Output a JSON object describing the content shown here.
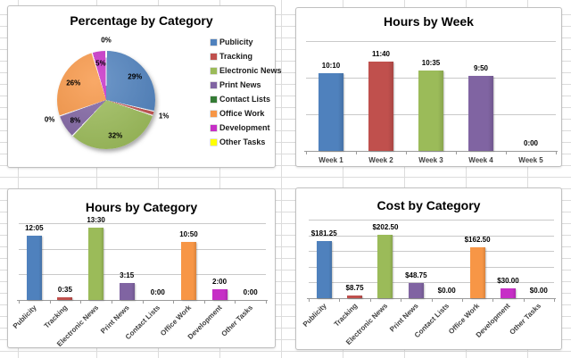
{
  "sheet": {
    "grid_color": "#dcdcdc"
  },
  "palette": {
    "publicity": "#4F81BD",
    "tracking": "#C0504D",
    "electronic_news": "#9BBB59",
    "print_news": "#8064A2",
    "contact_lists": "#347B35",
    "office_work": "#F79646",
    "development": "#C62FC6",
    "other_tasks": "#FFFF00"
  },
  "chart_data": [
    {
      "id": "percentage-by-category",
      "type": "pie",
      "title": "Percentage by Category",
      "legend_position": "right",
      "categories": [
        "Publicity",
        "Tracking",
        "Electronic News",
        "Print News",
        "Contact Lists",
        "Office Work",
        "Development",
        "Other Tasks"
      ],
      "values_percent": [
        28.6,
        1.4,
        31.9,
        7.7,
        0,
        25.6,
        4.7,
        0
      ],
      "slice_labels": [
        "29%",
        "1%",
        "32%",
        "8%",
        "0%",
        "26%",
        "5%",
        "0%"
      ],
      "colors": [
        "#4F81BD",
        "#C0504D",
        "#9BBB59",
        "#8064A2",
        "#347B35",
        "#F79646",
        "#C62FC6",
        "#FFFF00"
      ]
    },
    {
      "id": "hours-by-week",
      "type": "bar",
      "title": "Hours by Week",
      "categories": [
        "Week 1",
        "Week 2",
        "Week 3",
        "Week 4",
        "Week 5"
      ],
      "values_hours": [
        10.167,
        11.667,
        10.583,
        9.833,
        0
      ],
      "value_labels": [
        "10:10",
        "11:40",
        "10:35",
        "9:50",
        "0:00"
      ],
      "colors": [
        "#4F81BD",
        "#C0504D",
        "#9BBB59",
        "#8064A2",
        "#4F81BD"
      ],
      "ylim": [
        0,
        14.4
      ],
      "gridlines": "on",
      "legend_position": "none"
    },
    {
      "id": "hours-by-category",
      "type": "bar",
      "title": "Hours by Category",
      "categories": [
        "Publicity",
        "Tracking",
        "Electronic News",
        "Print News",
        "Contact Lists",
        "Office Work",
        "Development",
        "Other Tasks"
      ],
      "values_hours": [
        12.083,
        0.583,
        13.5,
        3.25,
        0,
        10.833,
        2,
        0
      ],
      "value_labels": [
        "12:05",
        "0:35",
        "13:30",
        "3:15",
        "0:00",
        "10:50",
        "2:00",
        "0:00"
      ],
      "colors": [
        "#4F81BD",
        "#C0504D",
        "#9BBB59",
        "#8064A2",
        "#347B35",
        "#F79646",
        "#C62FC6",
        "#FFFF00"
      ],
      "ylim": [
        0,
        14.4
      ],
      "gridlines": "on",
      "legend_position": "none"
    },
    {
      "id": "cost-by-category",
      "type": "bar",
      "title": "Cost by Category",
      "categories": [
        "Publicity",
        "Tracking",
        "Electronic News",
        "Print News",
        "Contact Lists",
        "Office Work",
        "Development",
        "Other Tasks"
      ],
      "values_dollars": [
        181.25,
        8.75,
        202.5,
        48.75,
        0,
        162.5,
        30,
        0
      ],
      "value_labels": [
        "$181.25",
        "$8.75",
        "$202.50",
        "$48.75",
        "$0.00",
        "$162.50",
        "$30.00",
        "$0.00"
      ],
      "colors": [
        "#4F81BD",
        "#C0504D",
        "#9BBB59",
        "#8064A2",
        "#347B35",
        "#F79646",
        "#C62FC6",
        "#FFFF00"
      ],
      "ylim": [
        0,
        250
      ],
      "gridlines": "on",
      "legend_position": "none"
    }
  ]
}
